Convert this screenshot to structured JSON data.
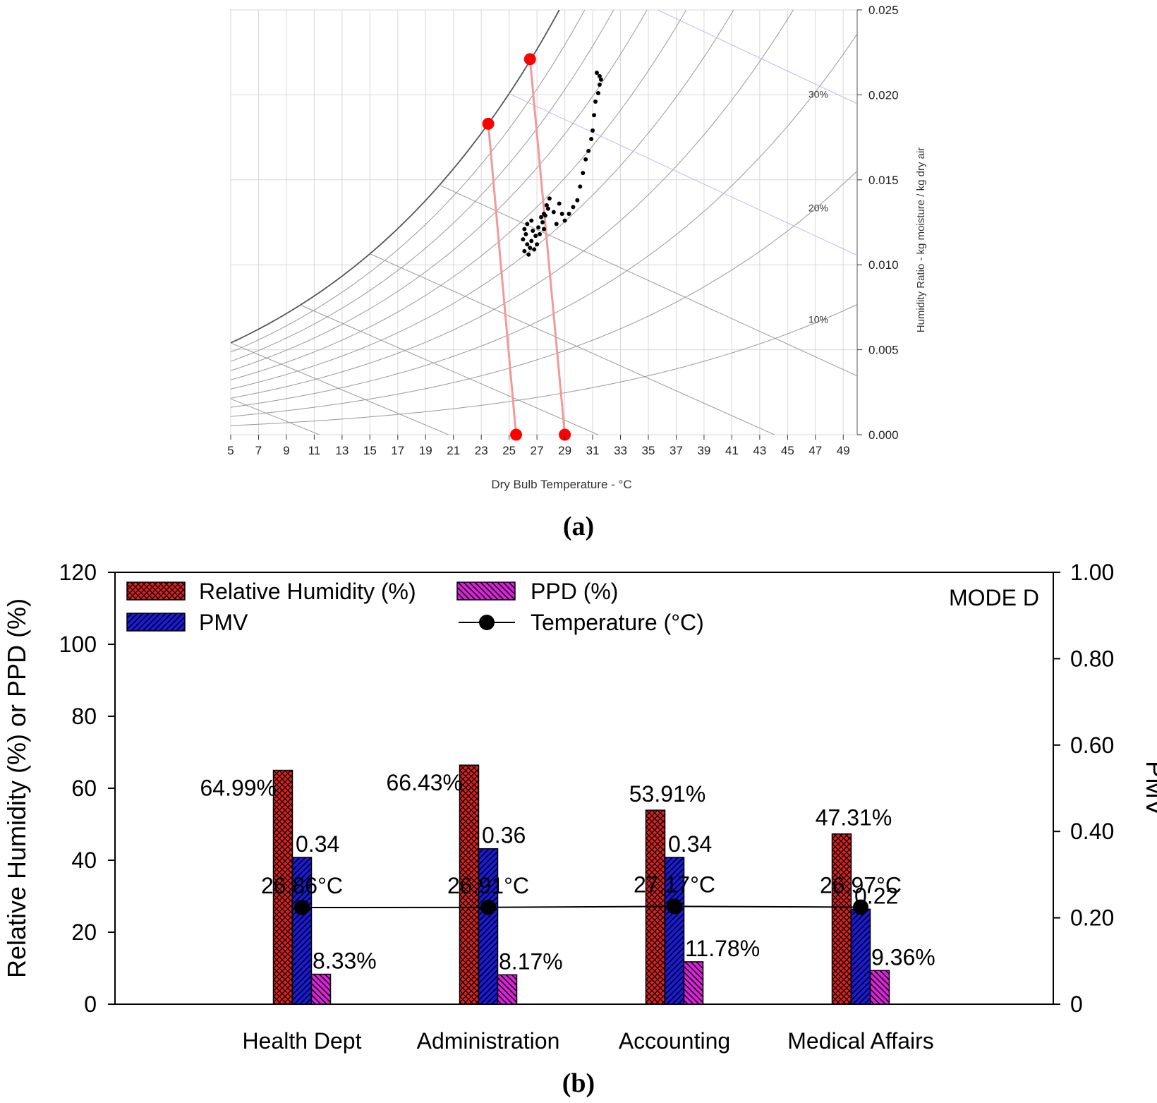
{
  "chart_data": [
    {
      "panel_label": "(a)",
      "type": "scatter",
      "xlabel": "Dry Bulb Temperature - °C",
      "ylabel": "Humidity Ratio - kg moisture / kg dry air",
      "xlim": [
        5,
        50
      ],
      "ylim": [
        0,
        0.025
      ],
      "x_ticks": [
        "5",
        "7",
        "9",
        "11",
        "13",
        "15",
        "17",
        "19",
        "21",
        "23",
        "25",
        "27",
        "29",
        "31",
        "33",
        "35",
        "37",
        "39",
        "41",
        "43",
        "45",
        "47",
        "49"
      ],
      "y_ticks": [
        "0.000",
        "0.005",
        "0.010",
        "0.015",
        "0.020",
        "0.025"
      ],
      "rh_labels": [
        "30%",
        "20%",
        "10%"
      ],
      "grid": true,
      "colors": {
        "measured": "#000000",
        "reference": "#ff0000",
        "rh_curve": "#999999",
        "saturation": "#555555",
        "enthalpy": "#c8b4f0"
      },
      "reference_points": [
        {
          "x": 23.5,
          "y": 0.0183
        },
        {
          "x": 26.5,
          "y": 0.0221
        },
        {
          "x": 25.5,
          "y": 0.0
        },
        {
          "x": 29.0,
          "y": 0.0
        }
      ],
      "measured_points": [
        [
          26.0,
          0.0115
        ],
        [
          26.1,
          0.0108
        ],
        [
          26.3,
          0.0112
        ],
        [
          26.2,
          0.0118
        ],
        [
          26.5,
          0.011
        ],
        [
          26.4,
          0.0106
        ],
        [
          26.6,
          0.0114
        ],
        [
          26.7,
          0.012
        ],
        [
          26.3,
          0.0124
        ],
        [
          26.8,
          0.0109
        ],
        [
          26.9,
          0.0117
        ],
        [
          27.0,
          0.0112
        ],
        [
          26.1,
          0.0121
        ],
        [
          26.6,
          0.0126
        ],
        [
          27.1,
          0.0122
        ],
        [
          27.3,
          0.0128
        ],
        [
          27.2,
          0.0118
        ],
        [
          27.5,
          0.013
        ],
        [
          27.4,
          0.0125
        ],
        [
          27.7,
          0.0135
        ],
        [
          27.6,
          0.0129
        ],
        [
          27.9,
          0.0139
        ],
        [
          27.8,
          0.0133
        ],
        [
          27.5,
          0.0121
        ],
        [
          28.2,
          0.0131
        ],
        [
          28.4,
          0.0124
        ],
        [
          28.6,
          0.0136
        ],
        [
          28.8,
          0.013
        ],
        [
          29.0,
          0.0126
        ],
        [
          29.3,
          0.013
        ],
        [
          29.6,
          0.0134
        ],
        [
          29.9,
          0.0138
        ],
        [
          30.1,
          0.0146
        ],
        [
          30.3,
          0.0154
        ],
        [
          30.5,
          0.0162
        ],
        [
          30.7,
          0.0167
        ],
        [
          30.9,
          0.0174
        ],
        [
          31.0,
          0.0179
        ],
        [
          31.1,
          0.0188
        ],
        [
          31.2,
          0.0196
        ],
        [
          31.4,
          0.0201
        ],
        [
          31.5,
          0.0206
        ],
        [
          31.5,
          0.0211
        ],
        [
          31.3,
          0.0213
        ],
        [
          31.6,
          0.0209
        ]
      ]
    },
    {
      "panel_label": "(b)",
      "type": "bar",
      "categories": [
        "Health Dept",
        "Administration",
        "Accounting",
        "Medical Affairs"
      ],
      "series": [
        {
          "name": "Relative Humidity (%)",
          "axis": "left",
          "color": "#e02020",
          "pattern": "crosshatch",
          "values": [
            64.99,
            66.43,
            53.91,
            47.31
          ],
          "labels": [
            "64.99%",
            "66.43%",
            "53.91%",
            "47.31%"
          ]
        },
        {
          "name": "PMV",
          "axis": "right",
          "color": "#1a1ae0",
          "pattern": "diagonal",
          "values": [
            0.34,
            0.36,
            0.34,
            0.22
          ],
          "labels": [
            "0.34",
            "0.36",
            "0.34",
            "0.22"
          ]
        },
        {
          "name": "PPD (%)",
          "axis": "left",
          "color": "#e020e0",
          "pattern": "diagonal",
          "values": [
            8.33,
            8.17,
            11.78,
            9.36
          ],
          "labels": [
            "8.33%",
            "8.17%",
            "11.78%",
            "9.36%"
          ]
        },
        {
          "name": "Temperature (°C)",
          "axis": "left",
          "type": "line",
          "color": "#000000",
          "values": [
            26.86,
            26.91,
            27.17,
            26.97
          ],
          "labels": [
            "26.86°C",
            "26.91°C",
            "27.17°C",
            "26.97°C"
          ]
        }
      ],
      "ylabel": "Relative Humidity (%) or PPD (%)",
      "y2label": "PMV",
      "ylim": [
        0,
        120
      ],
      "y2lim": [
        0,
        1.0
      ],
      "y_ticks": [
        "0",
        "20",
        "40",
        "60",
        "80",
        "100",
        "120"
      ],
      "y2_ticks": [
        "0",
        "0.20",
        "0.40",
        "0.60",
        "0.80",
        "1.00"
      ],
      "annotation": "MODE D",
      "legend": "top-left"
    }
  ]
}
